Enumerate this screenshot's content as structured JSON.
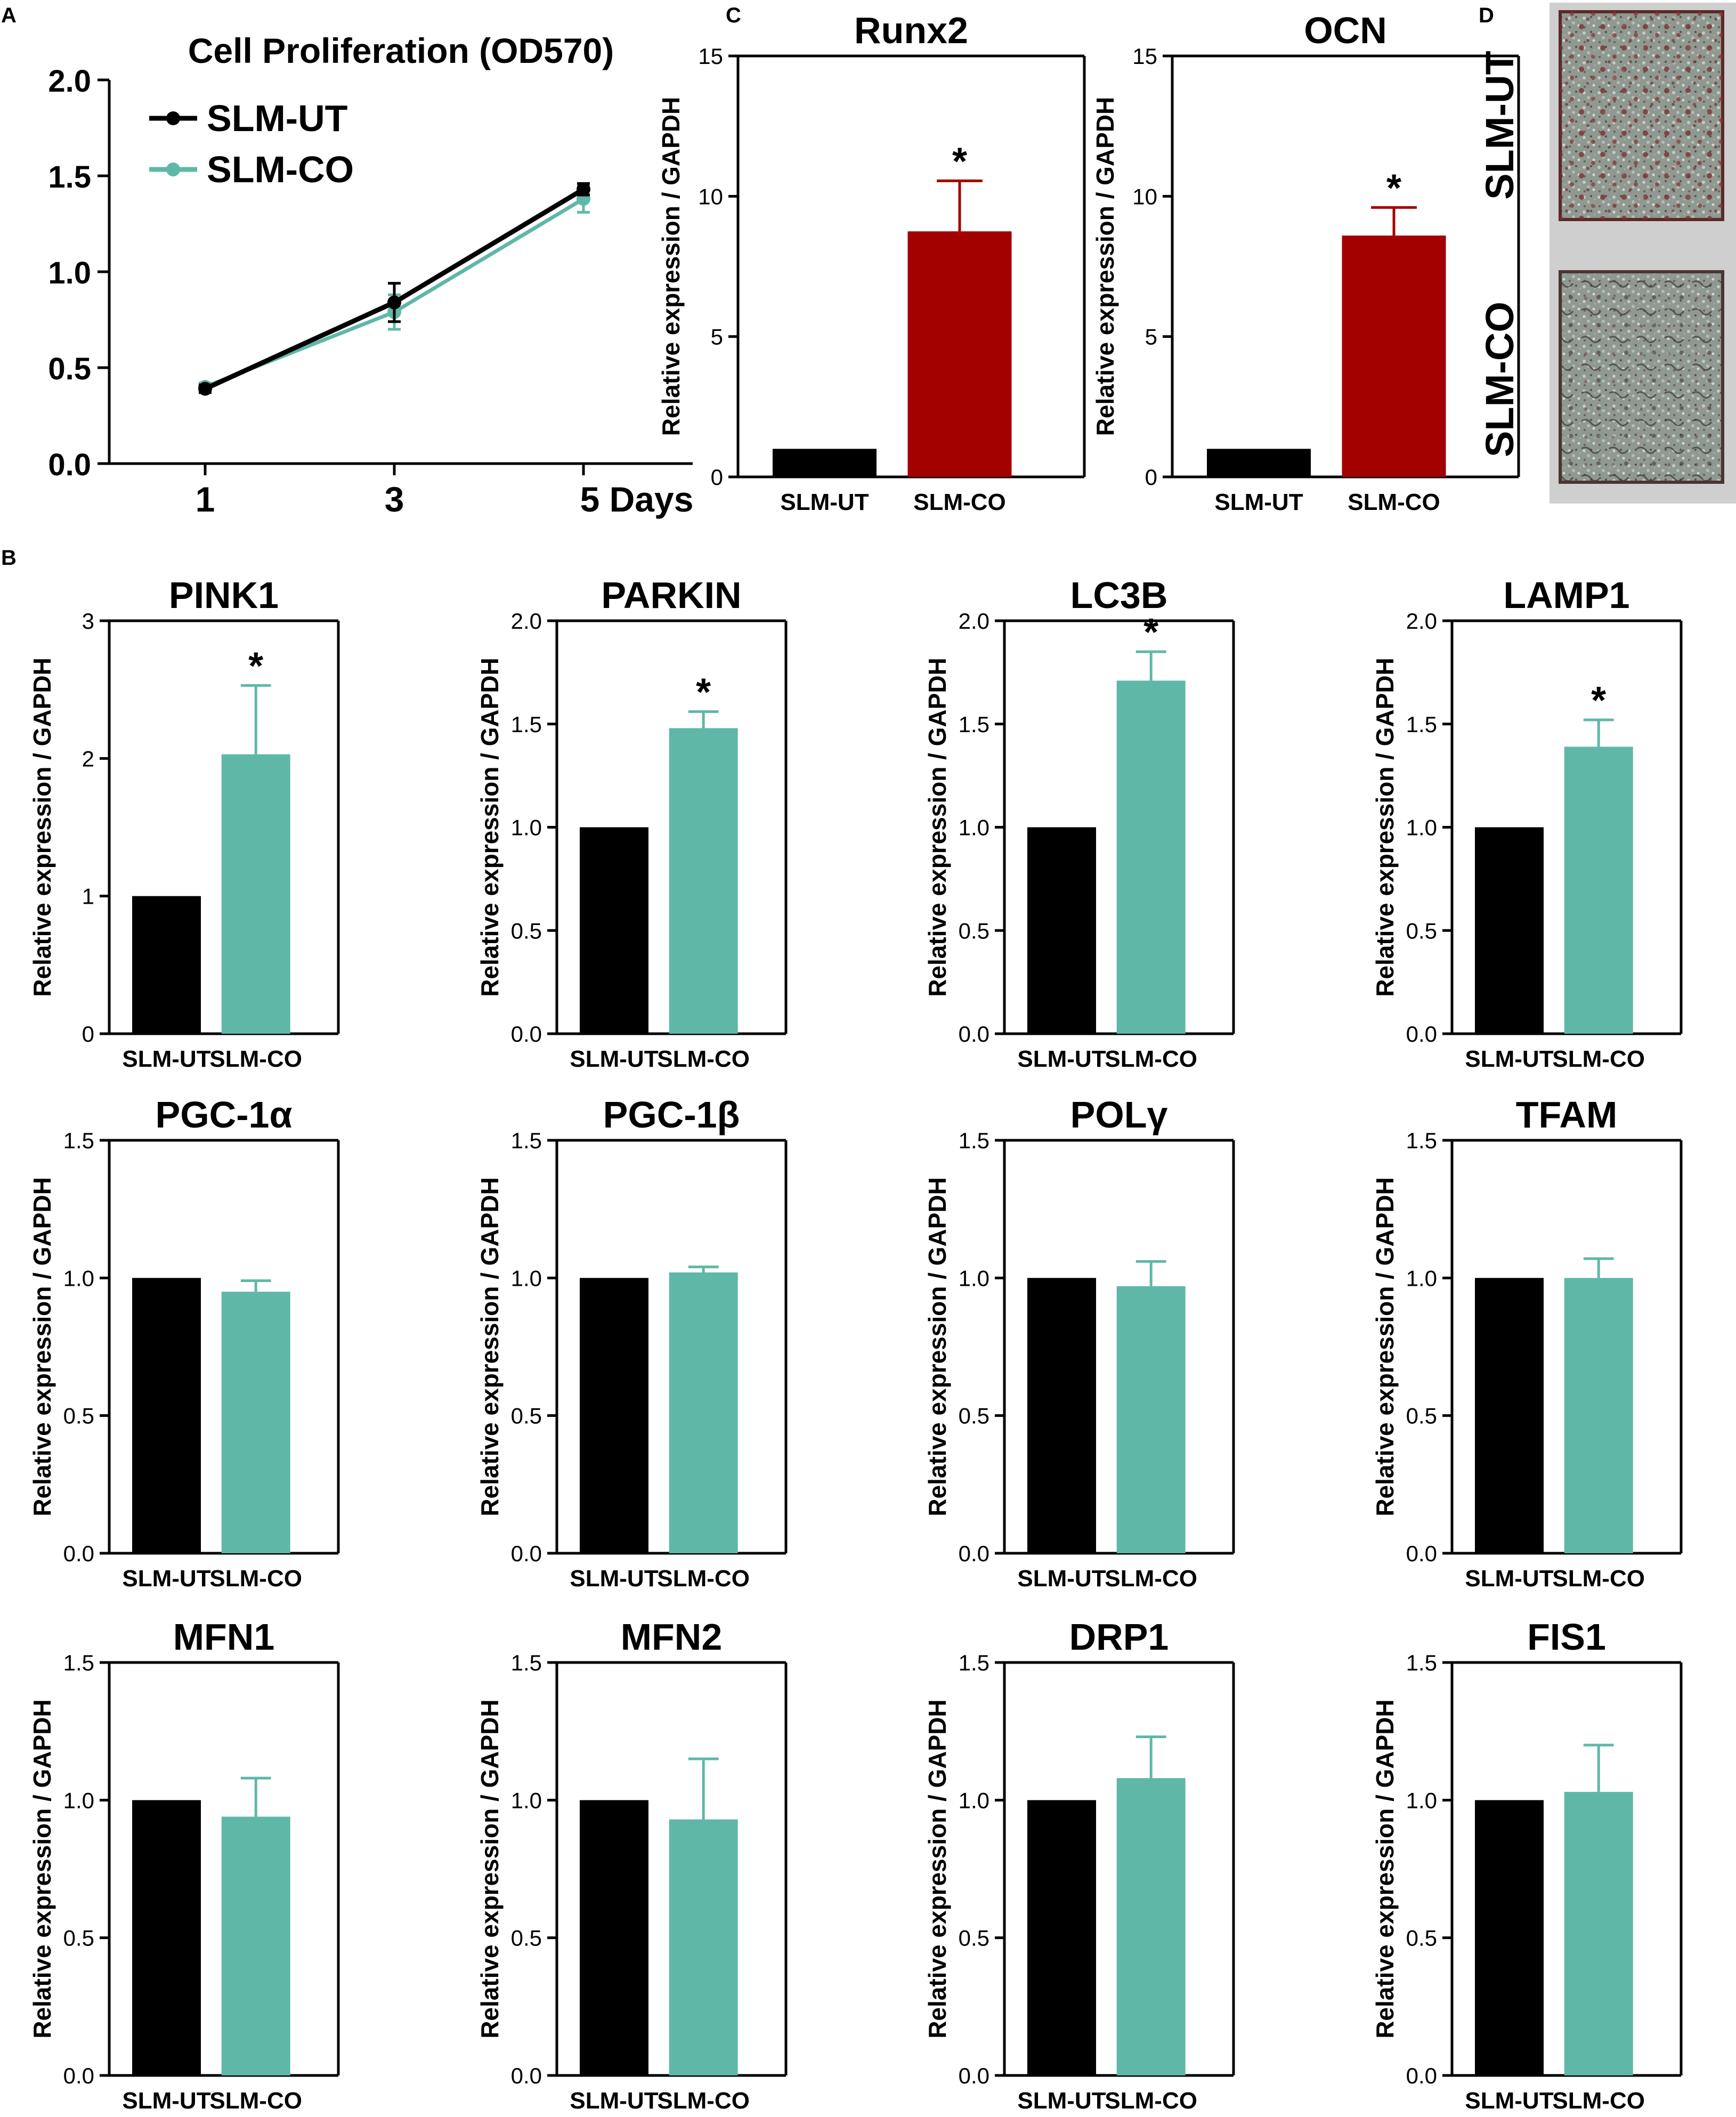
{
  "panels": {
    "A": "A",
    "B": "B",
    "C": "C",
    "D": "D"
  },
  "colors": {
    "ut": "#000000",
    "co": "#5fb8a7",
    "osteo": "#a30000"
  },
  "chart_data": [
    {
      "id": "prolif",
      "type": "line",
      "title": "Cell Proliferation (OD570)",
      "x": [
        1,
        3,
        5
      ],
      "x_tick_labels": [
        "1",
        "3",
        "5 Days"
      ],
      "xlabel": "",
      "ylabel": "",
      "ylim": [
        0,
        2.0
      ],
      "y_ticks": [
        "0.0",
        "0.5",
        "1.0",
        "1.5",
        "2.0"
      ],
      "legend": "top-left",
      "series": [
        {
          "name": "SLM-UT",
          "values": [
            0.39,
            0.84,
            1.43
          ],
          "errors": [
            0.02,
            0.1,
            0.03
          ]
        },
        {
          "name": "SLM-CO",
          "values": [
            0.4,
            0.79,
            1.38
          ],
          "errors": [
            0.02,
            0.09,
            0.07
          ]
        }
      ]
    },
    {
      "id": "Runx2",
      "type": "bar",
      "title": "Runx2",
      "categories": [
        "SLM-UT",
        "SLM-CO"
      ],
      "values": [
        1.0,
        8.75
      ],
      "errors": [
        0,
        1.8
      ],
      "significance": [
        "",
        "*"
      ],
      "ylim": [
        0,
        15
      ],
      "y_ticks": [
        "0",
        "5",
        "10",
        "15"
      ],
      "ylabel": "Relative expression / GAPDH"
    },
    {
      "id": "OCN",
      "type": "bar",
      "title": "OCN",
      "categories": [
        "SLM-UT",
        "SLM-CO"
      ],
      "values": [
        1.0,
        8.6
      ],
      "errors": [
        0,
        1.0
      ],
      "significance": [
        "",
        "*"
      ],
      "ylim": [
        0,
        15
      ],
      "y_ticks": [
        "0",
        "5",
        "10",
        "15"
      ],
      "ylabel": "Relative expression / GAPDH"
    },
    {
      "id": "PINK1",
      "type": "bar",
      "title": "PINK1",
      "categories": [
        "SLM-UT",
        "SLM-CO"
      ],
      "values": [
        1.0,
        2.03
      ],
      "errors": [
        0,
        0.5
      ],
      "significance": [
        "",
        "*"
      ],
      "ylim": [
        0,
        3
      ],
      "y_ticks": [
        "0",
        "1",
        "2",
        "3"
      ],
      "ylabel": "Relative expression / GAPDH"
    },
    {
      "id": "PARKIN",
      "type": "bar",
      "title": "PARKIN",
      "categories": [
        "SLM-UT",
        "SLM-CO"
      ],
      "values": [
        1.0,
        1.48
      ],
      "errors": [
        0,
        0.08
      ],
      "significance": [
        "",
        "*"
      ],
      "ylim": [
        0,
        2.0
      ],
      "y_ticks": [
        "0.0",
        "0.5",
        "1.0",
        "1.5",
        "2.0"
      ],
      "ylabel": "Relative expression / GAPDH"
    },
    {
      "id": "LC3B",
      "type": "bar",
      "title": "LC3B",
      "categories": [
        "SLM-UT",
        "SLM-CO"
      ],
      "values": [
        1.0,
        1.71
      ],
      "errors": [
        0,
        0.14
      ],
      "significance": [
        "",
        "*"
      ],
      "ylim": [
        0,
        2.0
      ],
      "y_ticks": [
        "0.0",
        "0.5",
        "1.0",
        "1.5",
        "2.0"
      ],
      "ylabel": "Relative expression / GAPDH"
    },
    {
      "id": "LAMP1",
      "type": "bar",
      "title": "LAMP1",
      "categories": [
        "SLM-UT",
        "SLM-CO"
      ],
      "values": [
        1.0,
        1.39
      ],
      "errors": [
        0,
        0.13
      ],
      "significance": [
        "",
        "*"
      ],
      "ylim": [
        0,
        2.0
      ],
      "y_ticks": [
        "0.0",
        "0.5",
        "1.0",
        "1.5",
        "2.0"
      ],
      "ylabel": "Relative expression / GAPDH"
    },
    {
      "id": "PGC1a",
      "type": "bar",
      "title": "PGC-1α",
      "categories": [
        "SLM-UT",
        "SLM-CO"
      ],
      "values": [
        1.0,
        0.95
      ],
      "errors": [
        0,
        0.04
      ],
      "significance": [
        "",
        ""
      ],
      "ylim": [
        0,
        1.5
      ],
      "y_ticks": [
        "0.0",
        "0.5",
        "1.0",
        "1.5"
      ],
      "ylabel": "Relative expression / GAPDH"
    },
    {
      "id": "PGC1b",
      "type": "bar",
      "title": "PGC-1β",
      "categories": [
        "SLM-UT",
        "SLM-CO"
      ],
      "values": [
        1.0,
        1.02
      ],
      "errors": [
        0,
        0.02
      ],
      "significance": [
        "",
        ""
      ],
      "ylim": [
        0,
        1.5
      ],
      "y_ticks": [
        "0.0",
        "0.5",
        "1.0",
        "1.5"
      ],
      "ylabel": "Relative expression / GAPDH"
    },
    {
      "id": "POLg",
      "type": "bar",
      "title": "POLγ",
      "categories": [
        "SLM-UT",
        "SLM-CO"
      ],
      "values": [
        1.0,
        0.97
      ],
      "errors": [
        0,
        0.09
      ],
      "significance": [
        "",
        ""
      ],
      "ylim": [
        0,
        1.5
      ],
      "y_ticks": [
        "0.0",
        "0.5",
        "1.0",
        "1.5"
      ],
      "ylabel": "Relative expression / GAPDH"
    },
    {
      "id": "TFAM",
      "type": "bar",
      "title": "TFAM",
      "categories": [
        "SLM-UT",
        "SLM-CO"
      ],
      "values": [
        1.0,
        1.0
      ],
      "errors": [
        0,
        0.07
      ],
      "significance": [
        "",
        ""
      ],
      "ylim": [
        0,
        1.5
      ],
      "y_ticks": [
        "0.0",
        "0.5",
        "1.0",
        "1.5"
      ],
      "ylabel": "Relative expression / GAPDH"
    },
    {
      "id": "MFN1",
      "type": "bar",
      "title": "MFN1",
      "categories": [
        "SLM-UT",
        "SLM-CO"
      ],
      "values": [
        1.0,
        0.94
      ],
      "errors": [
        0,
        0.14
      ],
      "significance": [
        "",
        ""
      ],
      "ylim": [
        0,
        1.5
      ],
      "y_ticks": [
        "0.0",
        "0.5",
        "1.0",
        "1.5"
      ],
      "ylabel": "Relative expression / GAPDH"
    },
    {
      "id": "MFN2",
      "type": "bar",
      "title": "MFN2",
      "categories": [
        "SLM-UT",
        "SLM-CO"
      ],
      "values": [
        1.0,
        0.93
      ],
      "errors": [
        0,
        0.22
      ],
      "significance": [
        "",
        ""
      ],
      "ylim": [
        0,
        1.5
      ],
      "y_ticks": [
        "0.0",
        "0.5",
        "1.0",
        "1.5"
      ],
      "ylabel": "Relative expression / GAPDH"
    },
    {
      "id": "DRP1",
      "type": "bar",
      "title": "DRP1",
      "categories": [
        "SLM-UT",
        "SLM-CO"
      ],
      "values": [
        1.0,
        1.08
      ],
      "errors": [
        0,
        0.15
      ],
      "significance": [
        "",
        ""
      ],
      "ylim": [
        0,
        1.5
      ],
      "y_ticks": [
        "0.0",
        "0.5",
        "1.0",
        "1.5"
      ],
      "ylabel": "Relative expression / GAPDH"
    },
    {
      "id": "FIS1",
      "type": "bar",
      "title": "FIS1",
      "categories": [
        "SLM-UT",
        "SLM-CO"
      ],
      "values": [
        1.0,
        1.03
      ],
      "errors": [
        0,
        0.17
      ],
      "significance": [
        "",
        ""
      ],
      "ylim": [
        0,
        1.5
      ],
      "y_ticks": [
        "0.0",
        "0.5",
        "1.0",
        "1.5"
      ],
      "ylabel": "Relative expression / GAPDH"
    }
  ],
  "photos": {
    "labels": [
      "SLM-UT",
      "SLM-CO"
    ]
  }
}
